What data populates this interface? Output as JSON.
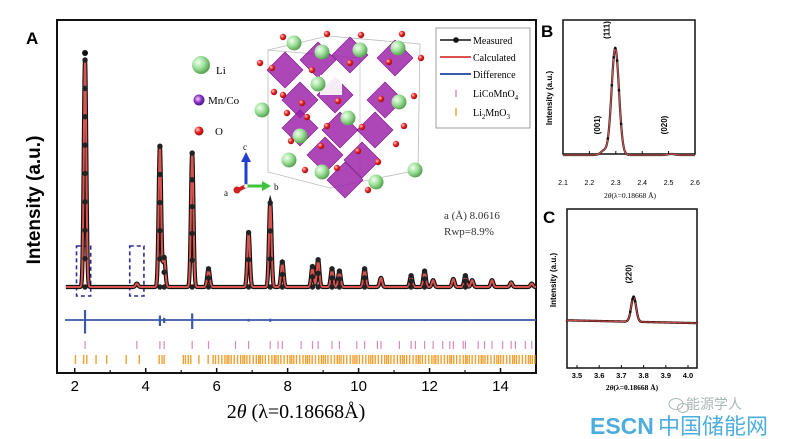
{
  "figure": {
    "panel_labels": [
      "A",
      "B",
      "C"
    ],
    "colors": {
      "measured": "#111111",
      "calculated": "#d9534f",
      "difference": "#3a5aa8",
      "licomno4_ticks": "#d88bb8",
      "li2mno3_ticks": "#f0a030",
      "highlight_box": "#2b2ba0",
      "polyhedra": "#9b1fa8",
      "li_atom": "#8fd68a",
      "o_atom": "#e02020"
    }
  },
  "structure_legend": {
    "items": [
      {
        "label": "Li",
        "icon": "green-sphere-icon"
      },
      {
        "label": "Mn/Co",
        "icon": "purple-sphere-icon"
      },
      {
        "label": "O",
        "icon": "red-sphere-icon"
      }
    ],
    "axes": {
      "a": "a",
      "b": "b",
      "c": "c"
    }
  },
  "annotation": {
    "lattice": "a (Å) 8.0616",
    "rwp": "Rwp=8.9%"
  },
  "watermark": {
    "left": "ESCN",
    "right": "中国储能网",
    "wechat": "能源学人"
  },
  "chart_data": [
    {
      "panel": "A",
      "type": "line",
      "title": "",
      "xlabel": "2θ (λ=0.18668Å)",
      "xlabel_parts": {
        "pre": "2",
        "theta": "θ",
        "post": " (λ=0.18668Å)"
      },
      "ylabel": "Intensity (a.u.)",
      "xlim": [
        1.5,
        15.0
      ],
      "ylim": [
        0,
        100
      ],
      "xticks": [
        2,
        4,
        6,
        8,
        10,
        12,
        14
      ],
      "xtick_labels": [
        "2",
        "4",
        "6",
        "8",
        "10",
        "12",
        "14"
      ],
      "grid": false,
      "legend": {
        "placement": "top-right",
        "entries": [
          {
            "label": "Measured",
            "style": "line-dot"
          },
          {
            "label": "Calculated",
            "style": "line"
          },
          {
            "label": "Difference",
            "style": "line"
          },
          {
            "label": "LiCoMnO",
            "sub": "4",
            "style": "tick"
          },
          {
            "label": "Li",
            "sub": "2",
            "post": "MnO",
            "sub2": "3",
            "style": "tick"
          }
        ]
      },
      "series": [
        {
          "name": "Measured",
          "peaks": [
            {
              "x": 2.29,
              "y": 100
            },
            {
              "x": 3.75,
              "y": 1.5
            },
            {
              "x": 4.4,
              "y": 62
            },
            {
              "x": 4.52,
              "y": 13
            },
            {
              "x": 5.31,
              "y": 59
            },
            {
              "x": 5.77,
              "y": 8
            },
            {
              "x": 6.9,
              "y": 24
            },
            {
              "x": 7.51,
              "y": 37
            },
            {
              "x": 7.85,
              "y": 11
            },
            {
              "x": 8.7,
              "y": 9
            },
            {
              "x": 8.86,
              "y": 12
            },
            {
              "x": 9.25,
              "y": 8
            },
            {
              "x": 9.46,
              "y": 7
            },
            {
              "x": 10.17,
              "y": 8
            },
            {
              "x": 10.63,
              "y": 4
            },
            {
              "x": 11.48,
              "y": 5
            },
            {
              "x": 11.86,
              "y": 7
            },
            {
              "x": 12.1,
              "y": 3
            },
            {
              "x": 12.67,
              "y": 3.5
            },
            {
              "x": 13.01,
              "y": 5
            },
            {
              "x": 13.2,
              "y": 3
            },
            {
              "x": 13.76,
              "y": 3
            },
            {
              "x": 14.3,
              "y": 2
            },
            {
              "x": 14.88,
              "y": 1.5
            }
          ]
        },
        {
          "name": "Calculated",
          "same_as": "Measured"
        },
        {
          "name": "Difference",
          "spikes": [
            {
              "x": 2.29,
              "amp": 9
            },
            {
              "x": 4.4,
              "amp": 4
            },
            {
              "x": 4.52,
              "amp": 2
            },
            {
              "x": 5.31,
              "amp": 6
            },
            {
              "x": 6.9,
              "amp": 1
            },
            {
              "x": 7.51,
              "amp": 1.2
            },
            {
              "x": 8.86,
              "amp": 0.6
            },
            {
              "x": 11.86,
              "amp": 0.6
            },
            {
              "x": 13.01,
              "amp": 0.6
            }
          ]
        }
      ],
      "reflection_ticks": {
        "LiCoMnO4": [
          2.29,
          3.75,
          4.4,
          4.52,
          5.31,
          5.77,
          6.53,
          6.9,
          7.51,
          7.73,
          7.85,
          8.38,
          8.7,
          8.86,
          9.25,
          9.46,
          9.95,
          10.17,
          10.53,
          10.63,
          11.15,
          11.48,
          11.6,
          11.86,
          12.1,
          12.37,
          12.57,
          12.67,
          12.95,
          13.01,
          13.37,
          13.55,
          13.76,
          14.06,
          14.3,
          14.42,
          14.7,
          14.88
        ],
        "Li2MnO3": [
          2.02,
          2.25,
          2.34,
          2.6,
          2.9,
          3.45,
          3.82,
          4.38,
          4.46,
          4.52,
          5.06,
          5.12,
          5.2,
          5.27,
          5.5,
          5.76
        ]
      },
      "highlight_regions": [
        [
          2.0,
          2.5
        ],
        [
          3.5,
          4.0
        ]
      ]
    },
    {
      "panel": "B",
      "type": "line",
      "xlabel": "2θ(λ=0.18668 Å)",
      "xlabel_parts": {
        "pre": "2",
        "theta": "θ",
        "post": "(λ=0.18668 Å)"
      },
      "ylabel": "Intensity (a.u.)",
      "xlim": [
        2.1,
        2.6
      ],
      "ylim": [
        0,
        100
      ],
      "xticks": [
        2.1,
        2.2,
        2.3,
        2.4,
        2.5,
        2.6
      ],
      "xtick_labels": [
        "2.1",
        "2.2",
        "2.3",
        "2.4",
        "2.5",
        "2.6"
      ],
      "baseline": 0,
      "peaks": [
        {
          "x": 2.255,
          "y": 4,
          "label": "(001)"
        },
        {
          "x": 2.298,
          "y": 100,
          "label": "(111)"
        },
        {
          "x": 2.51,
          "y": 1,
          "label": "(020)"
        }
      ]
    },
    {
      "panel": "C",
      "type": "line",
      "xlabel": "2θ(λ=0.18668 Å)",
      "xlabel_parts": {
        "pre": "2",
        "theta": "θ",
        "post": "(λ=0.18668 Å)"
      },
      "ylabel": "Intensity (a.u.)",
      "xlim": [
        3.45,
        4.05
      ],
      "ylim": [
        0,
        100
      ],
      "xticks": [
        3.5,
        3.6,
        3.7,
        3.8,
        3.9,
        4.0
      ],
      "xtick_labels": [
        "3.5",
        "3.6",
        "3.7",
        "3.8",
        "3.9",
        "4.0"
      ],
      "baseline": 30,
      "peaks": [
        {
          "x": 3.755,
          "y": 45,
          "label": "(220)"
        }
      ]
    }
  ]
}
